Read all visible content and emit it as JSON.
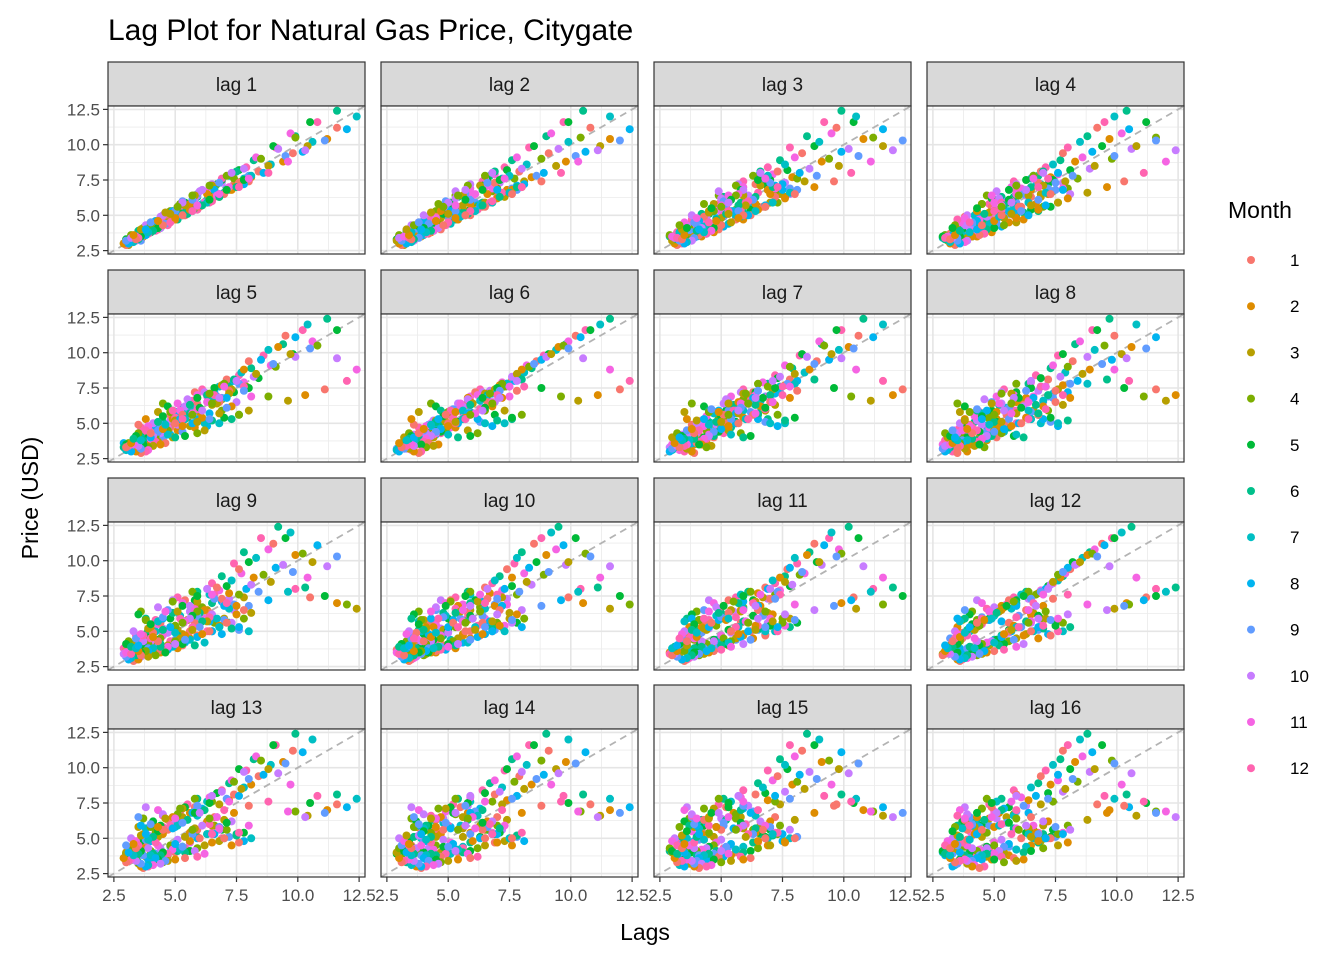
{
  "chart_data": {
    "type": "scatter",
    "title": "Lag Plot for Natural Gas Price, Citygate",
    "xlabel": "Lags",
    "ylabel": "Price (USD)",
    "xlim": [
      2.5,
      12.5
    ],
    "ylim": [
      2.5,
      12.5
    ],
    "x_ticks": [
      "2.5",
      "5.0",
      "7.5",
      "10.0",
      "12.5"
    ],
    "y_ticks": [
      "2.5",
      "5.0",
      "7.5",
      "10.0",
      "12.5"
    ],
    "facets": [
      "lag 1",
      "lag 2",
      "lag 3",
      "lag 4",
      "lag 5",
      "lag 6",
      "lag 7",
      "lag 8",
      "lag 9",
      "lag 10",
      "lag 11",
      "lag 12",
      "lag 13",
      "lag 14",
      "lag 15",
      "lag 16"
    ],
    "reference_line": "y = x (dashed grey)",
    "grid": true,
    "legend": {
      "title": "Month",
      "placement": "right",
      "entries": [
        "1",
        "2",
        "3",
        "4",
        "5",
        "6",
        "7",
        "8",
        "9",
        "10",
        "11",
        "12"
      ],
      "colors": [
        "#F8766D",
        "#DE8C00",
        "#B79F00",
        "#7CAE00",
        "#00BA38",
        "#00C08B",
        "#00BFC4",
        "#00B4F0",
        "#619CFF",
        "#C77CFF",
        "#F564E3",
        "#FF64B0"
      ]
    },
    "series_prices": [
      3.2,
      3.1,
      2.9,
      3.0,
      3.3,
      3.5,
      3.4,
      3.6,
      3.2,
      3.3,
      3.5,
      3.8,
      3.7,
      3.5,
      3.4,
      3.6,
      3.9,
      4.1,
      4.0,
      3.8,
      3.9,
      4.2,
      4.5,
      4.7,
      4.5,
      4.3,
      4.2,
      4.4,
      4.8,
      5.1,
      5.0,
      4.8,
      4.9,
      5.2,
      5.5,
      5.8,
      5.6,
      5.3,
      5.1,
      5.4,
      5.9,
      6.3,
      6.1,
      5.8,
      5.9,
      6.4,
      6.9,
      7.4,
      7.2,
      6.8,
      6.5,
      6.7,
      7.2,
      7.8,
      7.6,
      7.1,
      6.9,
      7.3,
      7.9,
      8.4,
      8.1,
      7.7,
      7.4,
      7.6,
      8.2,
      8.9,
      8.6,
      8.0,
      7.8,
      8.3,
      9.1,
      9.8,
      9.4,
      8.8,
      8.5,
      9.0,
      9.9,
      10.6,
      10.2,
      9.5,
      9.2,
      9.7,
      10.8,
      11.6,
      11.2,
      10.4,
      9.9,
      10.5,
      11.6,
      12.4,
      12.0,
      11.1,
      10.3,
      9.6,
      8.8,
      8.0,
      7.4,
      7.0,
      6.6,
      6.9,
      7.5,
      8.1,
      7.8,
      7.2,
      6.8,
      6.5,
      6.9,
      7.6,
      7.3,
      6.8,
      6.3,
      5.9,
      5.6,
      5.3,
      5.0,
      4.8,
      5.1,
      5.6,
      5.4,
      5.0,
      4.7,
      4.5,
      4.8,
      5.3,
      5.1,
      4.7,
      4.4,
      4.2,
      4.4,
      4.9,
      4.7,
      4.3,
      4.0,
      3.8,
      4.0,
      4.5,
      4.4,
      4.1,
      3.9,
      3.7,
      3.9,
      4.3,
      4.2,
      3.9,
      3.7,
      3.5,
      3.7,
      4.1,
      4.0,
      3.8,
      3.6,
      3.5,
      3.8,
      4.3,
      4.5,
      4.7,
      4.9,
      5.3,
      5.8,
      6.4,
      6.2,
      5.9,
      5.7,
      5.9,
      6.5,
      7.2,
      7.0,
      6.6,
      6.3,
      6.5,
      7.1,
      7.8,
      7.5,
      7.0,
      6.6,
      6.8,
      7.3,
      8.0,
      7.6,
      7.0,
      6.5,
      6.2,
      5.9,
      5.6,
      5.4,
      5.2,
      5.0,
      5.3,
      5.8,
      6.2,
      5.9,
      5.4,
      5.0,
      4.7,
      4.5,
      4.3,
      4.1,
      4.0,
      4.2,
      4.6,
      4.4,
      4.1,
      3.9,
      3.7,
      3.6,
      3.5,
      3.4,
      3.3,
      3.5,
      3.9,
      3.8,
      3.6,
      3.4,
      3.2,
      3.1,
      3.0,
      2.9,
      3.0,
      3.2,
      3.6,
      3.5,
      3.3,
      3.1,
      3.0,
      3.2,
      3.4,
      3.5,
      3.4,
      3.3,
      3.6,
      4.0,
      4.3,
      4.1,
      3.9,
      3.8,
      4.0,
      4.5,
      5.0,
      4.8,
      4.5,
      4.3,
      4.6,
      5.2,
      5.8,
      5.5,
      5.1,
      4.9,
      5.3,
      6.0,
      6.7,
      6.4,
      5.9,
      5.6,
      5.8,
      6.4,
      7.1,
      6.8,
      6.3,
      5.9,
      5.7,
      6.1,
      6.8,
      6.5,
      6.0,
      5.6,
      5.4,
      5.7,
      6.4,
      6.1,
      5.7,
      5.3,
      5.0,
      5.3,
      5.9,
      5.7,
      5.3,
      5.0,
      4.8,
      5.1,
      5.6
    ]
  }
}
